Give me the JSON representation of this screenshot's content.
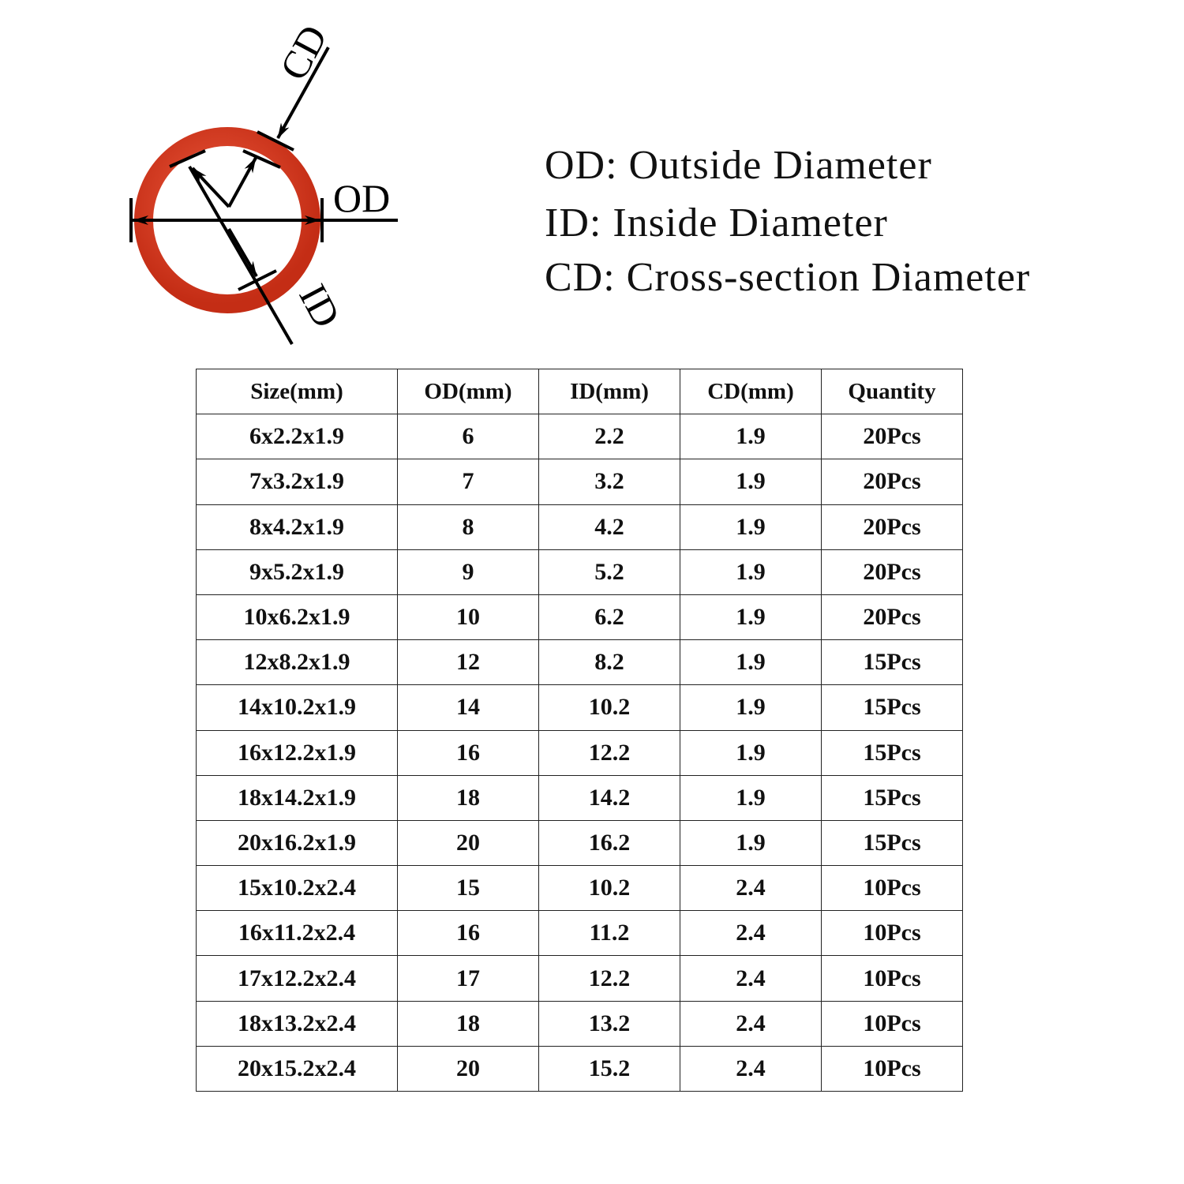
{
  "diagram": {
    "labels": {
      "cd": "CD",
      "od": "OD",
      "id": "ID"
    },
    "ring_color": "#d93a22"
  },
  "legend": [
    "OD: Outside Diameter",
    "ID: Inside Diameter",
    "CD: Cross-section Diameter"
  ],
  "table": {
    "headers": [
      "Size(mm)",
      "OD(mm)",
      "ID(mm)",
      "CD(mm)",
      "Quantity"
    ],
    "rows": [
      [
        "6x2.2x1.9",
        "6",
        "2.2",
        "1.9",
        "20Pcs"
      ],
      [
        "7x3.2x1.9",
        "7",
        "3.2",
        "1.9",
        "20Pcs"
      ],
      [
        "8x4.2x1.9",
        "8",
        "4.2",
        "1.9",
        "20Pcs"
      ],
      [
        "9x5.2x1.9",
        "9",
        "5.2",
        "1.9",
        "20Pcs"
      ],
      [
        "10x6.2x1.9",
        "10",
        "6.2",
        "1.9",
        "20Pcs"
      ],
      [
        "12x8.2x1.9",
        "12",
        "8.2",
        "1.9",
        "15Pcs"
      ],
      [
        "14x10.2x1.9",
        "14",
        "10.2",
        "1.9",
        "15Pcs"
      ],
      [
        "16x12.2x1.9",
        "16",
        "12.2",
        "1.9",
        "15Pcs"
      ],
      [
        "18x14.2x1.9",
        "18",
        "14.2",
        "1.9",
        "15Pcs"
      ],
      [
        "20x16.2x1.9",
        "20",
        "16.2",
        "1.9",
        "15Pcs"
      ],
      [
        "15x10.2x2.4",
        "15",
        "10.2",
        "2.4",
        "10Pcs"
      ],
      [
        "16x11.2x2.4",
        "16",
        "11.2",
        "2.4",
        "10Pcs"
      ],
      [
        "17x12.2x2.4",
        "17",
        "12.2",
        "2.4",
        "10Pcs"
      ],
      [
        "18x13.2x2.4",
        "18",
        "13.2",
        "2.4",
        "10Pcs"
      ],
      [
        "20x15.2x2.4",
        "20",
        "15.2",
        "2.4",
        "10Pcs"
      ]
    ]
  }
}
